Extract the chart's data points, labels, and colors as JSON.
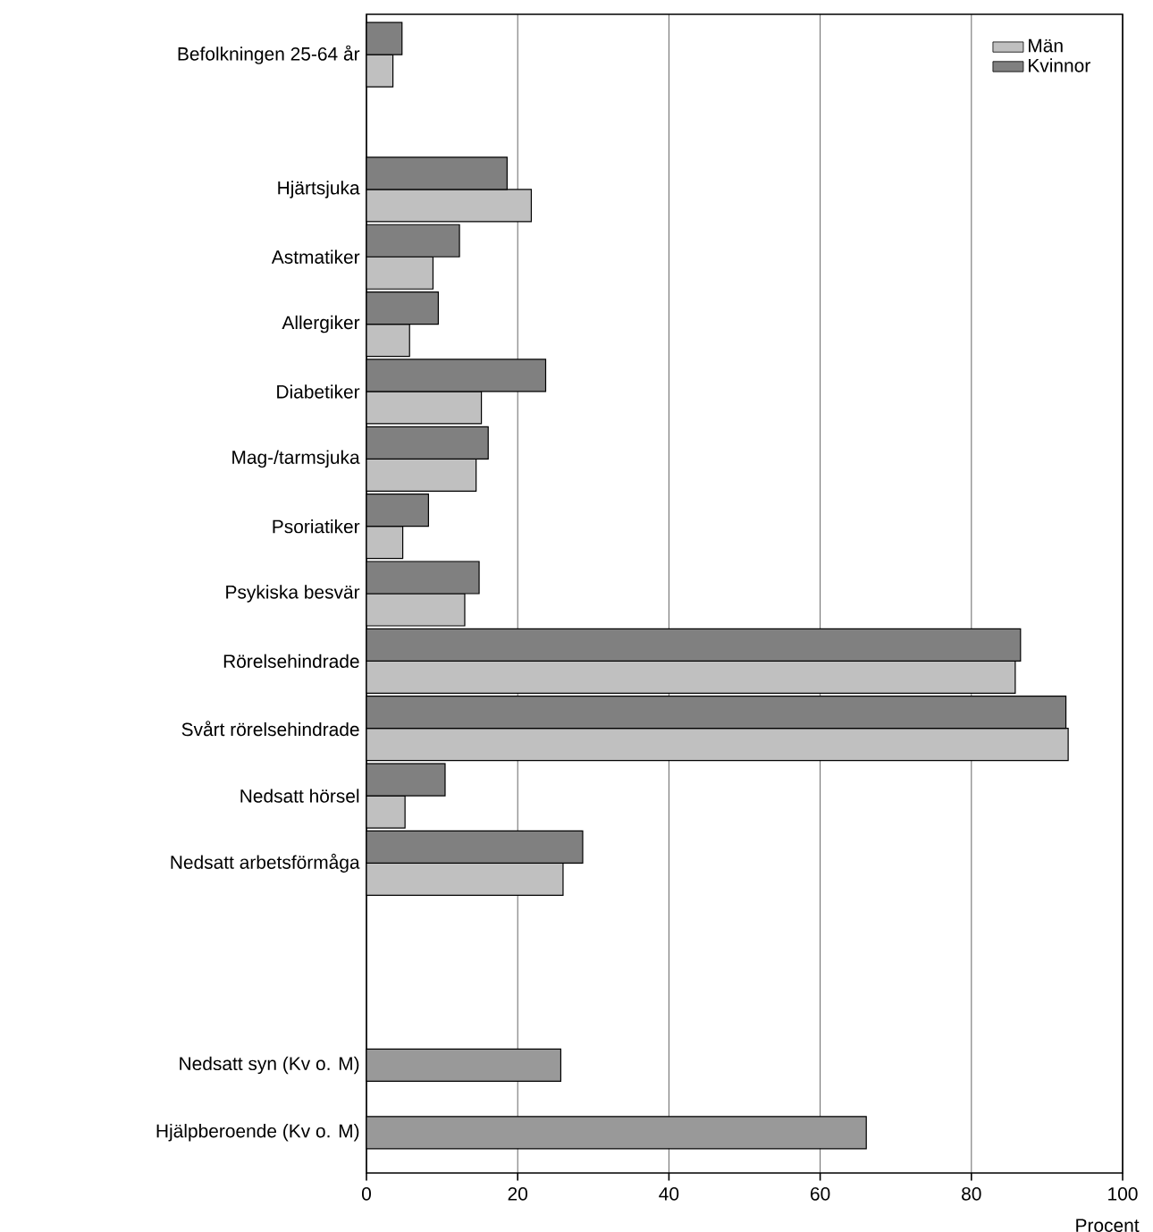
{
  "chart_data": {
    "type": "bar",
    "orientation": "horizontal",
    "xlabel": "Procent",
    "categories": [
      "Befolkningen 25-64 år",
      null,
      "Hjärtsjuka",
      "Astmatiker",
      "Allergiker",
      "Diabetiker",
      "Mag-/tarmsjuka",
      "Psoriatiker",
      "Psykiska besvär",
      "Rörelsehindrade",
      "Svårt rörelsehindrade",
      "Nedsatt hörsel",
      "Nedsatt arbetsförmåga",
      null,
      null,
      "Nedsatt syn (Kv o. M)",
      "Hjälpberoende (Kv o. M)"
    ],
    "series": [
      {
        "name": "Män",
        "color": "#c0c0c0",
        "values": [
          3.5,
          null,
          21.8,
          8.8,
          5.7,
          15.2,
          14.5,
          4.8,
          13.0,
          85.8,
          92.8,
          5.1,
          26.0,
          null,
          null,
          null,
          null
        ]
      },
      {
        "name": "Kvinnor",
        "color": "#808080",
        "values": [
          4.7,
          null,
          18.6,
          12.3,
          9.5,
          23.7,
          16.1,
          8.2,
          14.9,
          86.5,
          92.5,
          10.4,
          28.6,
          null,
          null,
          null,
          null
        ]
      },
      {
        "color": "#999999",
        "values": [
          null,
          null,
          null,
          null,
          null,
          null,
          null,
          null,
          null,
          null,
          null,
          null,
          null,
          null,
          null,
          25.7,
          66.1
        ]
      }
    ],
    "xlim": [
      0,
      100
    ],
    "xticks": [
      0,
      20,
      40,
      60,
      80,
      100
    ],
    "grid": "x",
    "legend": "top right"
  }
}
